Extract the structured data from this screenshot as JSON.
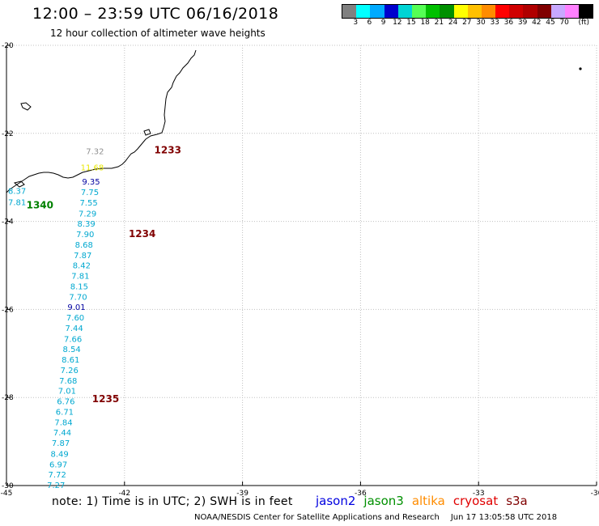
{
  "header": {
    "title": "12:00 – 23:59 UTC 06/16/2018",
    "subtitle": "12 hour collection of altimeter wave heights"
  },
  "legend": {
    "unit": "(ft)",
    "colors": [
      "#808080",
      "#00ffff",
      "#00aaff",
      "#0000cd",
      "#00d4d4",
      "#55ff55",
      "#00c000",
      "#009000",
      "#ffff00",
      "#ffc000",
      "#ff8c00",
      "#ff0000",
      "#d00000",
      "#b00000",
      "#800000",
      "#c8a8ff",
      "#ff80ff",
      "#000000"
    ],
    "labels": [
      "3",
      "6",
      "9",
      "12",
      "15",
      "18",
      "21",
      "24",
      "27",
      "30",
      "33",
      "36",
      "39",
      "42",
      "45",
      "70"
    ]
  },
  "chart_data": {
    "type": "scatter",
    "xlim": [
      -45,
      -30
    ],
    "ylim": [
      -30,
      -20
    ],
    "x_ticks": [
      "-45",
      "-42",
      "-39",
      "-36",
      "-33",
      "-30"
    ],
    "y_ticks": [
      "-20",
      "-22",
      "-24",
      "-26",
      "-28",
      "-30"
    ],
    "grid": true,
    "times": [
      {
        "text": "1233",
        "lon": -40.9,
        "lat": -22.38,
        "color": "#800000"
      },
      {
        "text": "1234",
        "lon": -41.55,
        "lat": -24.28,
        "color": "#800000"
      },
      {
        "text": "1235",
        "lon": -42.48,
        "lat": -28.03,
        "color": "#800000"
      },
      {
        "text": "1340",
        "lon": -44.15,
        "lat": -23.63,
        "color": "#008000"
      }
    ],
    "points": [
      {
        "text": "7.32",
        "lon": -42.75,
        "lat": -22.4,
        "color": "#909090"
      },
      {
        "text": "11.68",
        "lon": -42.82,
        "lat": -22.77,
        "color": "#e8e800"
      },
      {
        "text": "9.35",
        "lon": -42.85,
        "lat": -23.09,
        "color": "#0000a0"
      },
      {
        "text": "7.75",
        "lon": -42.88,
        "lat": -23.33,
        "color": "#00a8d0"
      },
      {
        "text": "7.55",
        "lon": -42.91,
        "lat": -23.57,
        "color": "#00a8d0"
      },
      {
        "text": "7.29",
        "lon": -42.94,
        "lat": -23.81,
        "color": "#00a8d0"
      },
      {
        "text": "8.39",
        "lon": -42.97,
        "lat": -24.04,
        "color": "#00a8d0"
      },
      {
        "text": "7.90",
        "lon": -43.0,
        "lat": -24.28,
        "color": "#00a8d0"
      },
      {
        "text": "8.68",
        "lon": -43.03,
        "lat": -24.52,
        "color": "#00a8d0"
      },
      {
        "text": "7.87",
        "lon": -43.06,
        "lat": -24.76,
        "color": "#00a8d0"
      },
      {
        "text": "8.42",
        "lon": -43.09,
        "lat": -24.99,
        "color": "#00a8d0"
      },
      {
        "text": "7.81",
        "lon": -43.12,
        "lat": -25.23,
        "color": "#00a8d0"
      },
      {
        "text": "8.15",
        "lon": -43.15,
        "lat": -25.47,
        "color": "#00a8d0"
      },
      {
        "text": "7.70",
        "lon": -43.18,
        "lat": -25.71,
        "color": "#00a8d0"
      },
      {
        "text": "9.01",
        "lon": -43.22,
        "lat": -25.94,
        "color": "#0000a0"
      },
      {
        "text": "7.60",
        "lon": -43.25,
        "lat": -26.18,
        "color": "#00a8d0"
      },
      {
        "text": "7.44",
        "lon": -43.28,
        "lat": -26.42,
        "color": "#00a8d0"
      },
      {
        "text": "7.66",
        "lon": -43.31,
        "lat": -26.66,
        "color": "#00a8d0"
      },
      {
        "text": "8.54",
        "lon": -43.34,
        "lat": -26.89,
        "color": "#00a8d0"
      },
      {
        "text": "8.61",
        "lon": -43.37,
        "lat": -27.13,
        "color": "#00a8d0"
      },
      {
        "text": "7.26",
        "lon": -43.4,
        "lat": -27.37,
        "color": "#00a8d0"
      },
      {
        "text": "7.68",
        "lon": -43.43,
        "lat": -27.61,
        "color": "#00a8d0"
      },
      {
        "text": "7.01",
        "lon": -43.46,
        "lat": -27.84,
        "color": "#00a8d0"
      },
      {
        "text": "6.76",
        "lon": -43.49,
        "lat": -28.08,
        "color": "#00a8d0"
      },
      {
        "text": "6.71",
        "lon": -43.52,
        "lat": -28.32,
        "color": "#00a8d0"
      },
      {
        "text": "7.84",
        "lon": -43.55,
        "lat": -28.56,
        "color": "#00a8d0"
      },
      {
        "text": "7.44",
        "lon": -43.58,
        "lat": -28.79,
        "color": "#00a8d0"
      },
      {
        "text": "7.87",
        "lon": -43.62,
        "lat": -29.03,
        "color": "#00a8d0"
      },
      {
        "text": "8.49",
        "lon": -43.65,
        "lat": -29.27,
        "color": "#00a8d0"
      },
      {
        "text": "6.97",
        "lon": -43.68,
        "lat": -29.51,
        "color": "#00a8d0"
      },
      {
        "text": "7.72",
        "lon": -43.71,
        "lat": -29.74,
        "color": "#00a8d0"
      },
      {
        "text": "7.27",
        "lon": -43.74,
        "lat": -29.98,
        "color": "#00a8d0"
      },
      {
        "text": "8.37",
        "lon": -44.73,
        "lat": -23.3,
        "color": "#00a8d0"
      },
      {
        "text": "7.81",
        "lon": -44.73,
        "lat": -23.56,
        "color": "#00a8d0"
      }
    ]
  },
  "footer": {
    "note": "note:  1) Time is in UTC;  2) SWH is in feet",
    "satellites": [
      {
        "name": "jason2",
        "color": "#0000e0"
      },
      {
        "name": "jason3",
        "color": "#009000"
      },
      {
        "name": "altika",
        "color": "#ff8c00"
      },
      {
        "name": "cryosat",
        "color": "#e00000"
      },
      {
        "name": "s3a",
        "color": "#800000"
      }
    ],
    "credit": "NOAA/NESDIS Center for Satellite Applications and Research",
    "timestamp": "Jun 17 13:05:58 UTC 2018"
  }
}
